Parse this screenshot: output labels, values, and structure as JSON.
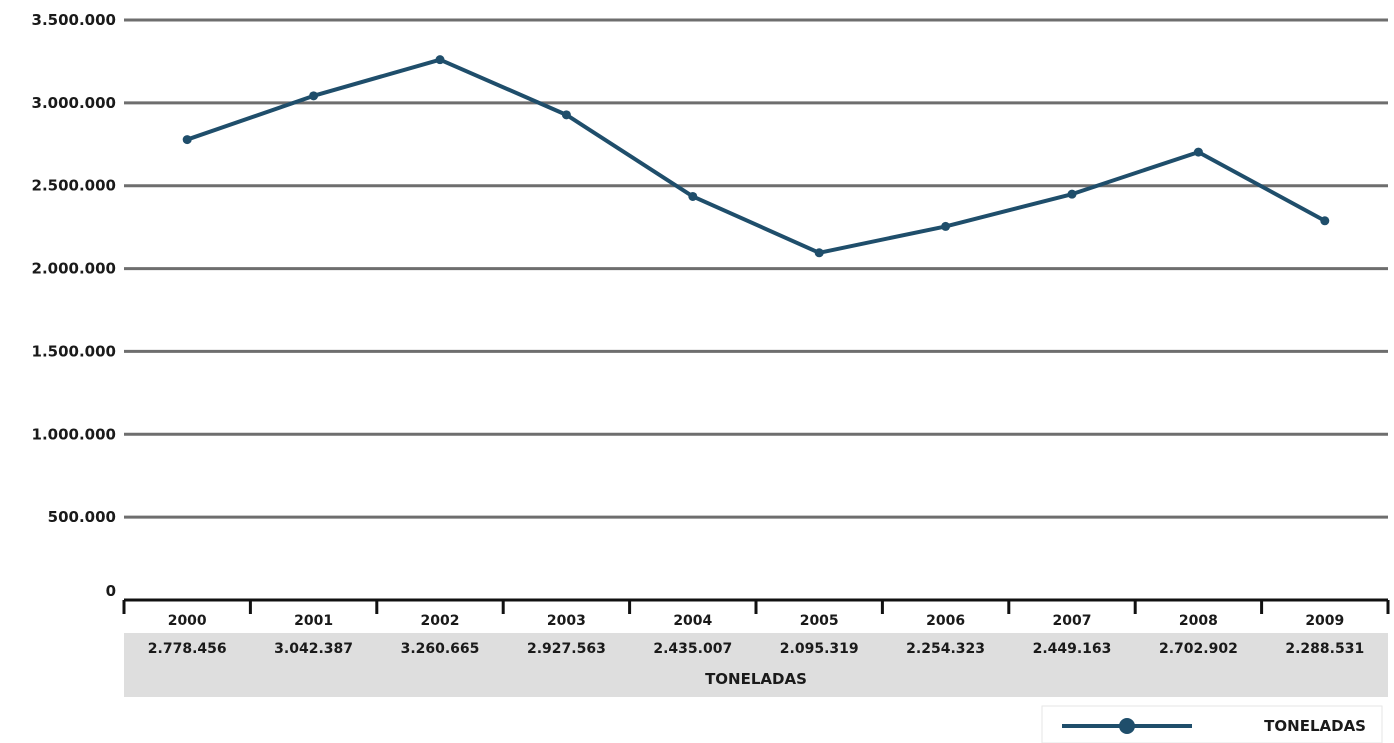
{
  "chart_data": {
    "type": "line",
    "categories": [
      "2000",
      "2001",
      "2002",
      "2003",
      "2004",
      "2005",
      "2006",
      "2007",
      "2008",
      "2009"
    ],
    "series": [
      {
        "name": "TONELADAS",
        "values": [
          2778456,
          3042387,
          3260665,
          2927563,
          2435007,
          2095319,
          2254323,
          2449163,
          2702902,
          2288531
        ],
        "value_labels": [
          "2.778.456",
          "3.042.387",
          "3.260.665",
          "2.927.563",
          "2.435.007",
          "2.095.319",
          "2.254.323",
          "2.449.163",
          "2.702.902",
          "2.288.531"
        ],
        "color": "#1f4e6b"
      }
    ],
    "yticks": [
      0,
      500000,
      1000000,
      1500000,
      2000000,
      2500000,
      3000000,
      3500000
    ],
    "ytick_labels": [
      "0",
      "500.000",
      "1.000.000",
      "1.500.000",
      "2.000.000",
      "2.500.000",
      "3.000.000",
      "3.500.000"
    ],
    "ylim": [
      0,
      3500000
    ],
    "grid": true,
    "grid_color": "#6e6e6e",
    "table_background": "#dedede",
    "legend": {
      "position": "bottom-right",
      "label": "TONELADAS"
    }
  }
}
